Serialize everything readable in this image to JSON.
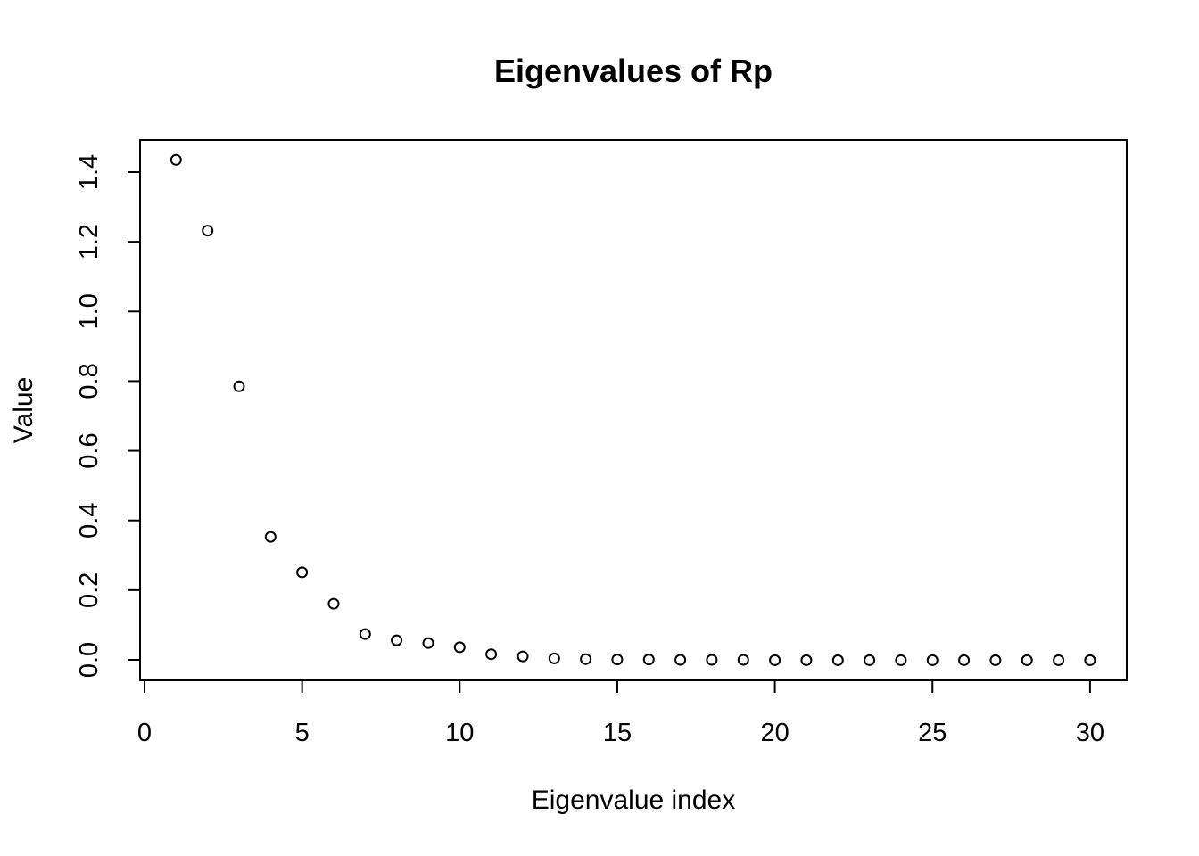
{
  "figure": {
    "background_color": "#ffffff",
    "foreground_color": "#000000",
    "title": "Eigenvalues of Rp",
    "x_axis_label": "Eigenvalue index",
    "y_axis_label": "Value"
  },
  "chart_data": {
    "type": "scatter",
    "title": "Eigenvalues of Rp",
    "xlabel": "Eigenvalue index",
    "ylabel": "Value",
    "marker": "open-circle",
    "grid": false,
    "legend_position": "none",
    "xlim": [
      -0.2,
      31.2
    ],
    "ylim": [
      -0.06,
      1.49
    ],
    "xticks": {
      "values": [
        0,
        5,
        10,
        15,
        20,
        25,
        30
      ],
      "labels": [
        "0",
        "5",
        "10",
        "15",
        "20",
        "25",
        "30"
      ]
    },
    "yticks": {
      "values": [
        0.0,
        0.2,
        0.4,
        0.6,
        0.8,
        1.0,
        1.2,
        1.4
      ],
      "labels": [
        "0.0",
        "0.2",
        "0.4",
        "0.6",
        "0.8",
        "1.0",
        "1.2",
        "1.4"
      ]
    },
    "x": [
      1,
      2,
      3,
      4,
      5,
      6,
      7,
      8,
      9,
      10,
      11,
      12,
      13,
      14,
      15,
      16,
      17,
      18,
      19,
      20,
      21,
      22,
      23,
      24,
      25,
      26,
      27,
      28,
      29,
      30
    ],
    "y": [
      1.435,
      1.232,
      0.785,
      0.353,
      0.251,
      0.161,
      0.074,
      0.056,
      0.048,
      0.036,
      0.016,
      0.01,
      0.004,
      0.002,
      0.001,
      0.001,
      0.0,
      0.0,
      0.0,
      -0.001,
      -0.001,
      -0.001,
      -0.001,
      -0.001,
      -0.001,
      -0.001,
      -0.001,
      -0.001,
      -0.001,
      -0.001
    ]
  }
}
